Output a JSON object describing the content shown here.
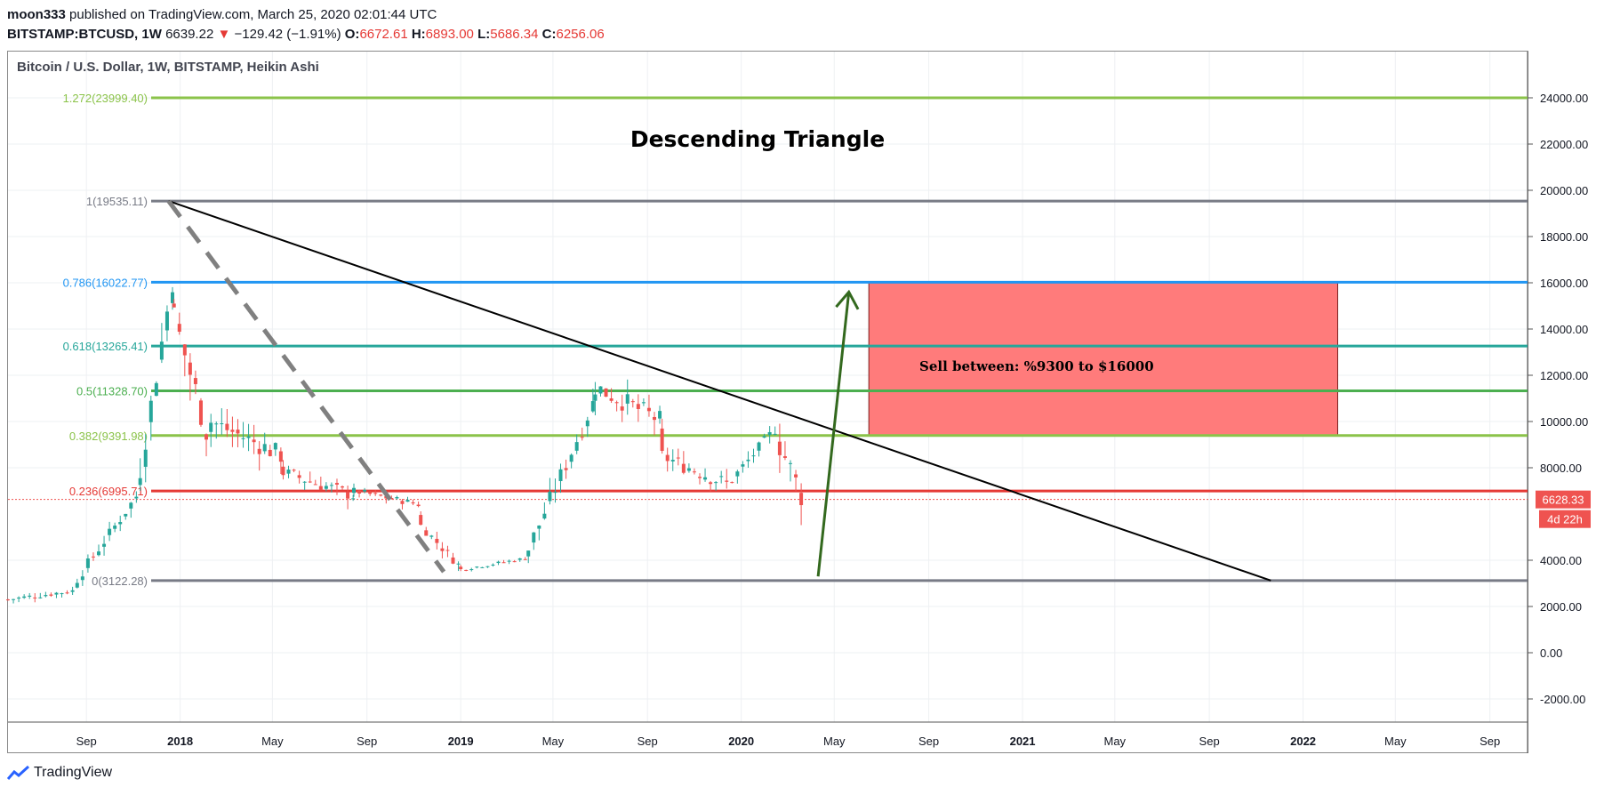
{
  "header": {
    "line1": {
      "user": "moon333",
      "text": "published on TradingView.com, March 25, 2020 02:01:44 UTC"
    },
    "line2": {
      "symbol": "BITSTAMP:BTCUSD, 1W",
      "price": "6639.22",
      "arrow": "▼",
      "change": "−129.42 (−1.91%)",
      "o_label": "O:",
      "o": "6672.61",
      "h_label": "H:",
      "h": "6893.00",
      "l_label": "L:",
      "l": "5686.34",
      "c_label": "C:",
      "c": "6256.06"
    }
  },
  "chart_title": "Bitcoin / U.S. Dollar, 1W, BITSTAMP, Heikin Ashi",
  "footer": {
    "brand": "TradingView",
    "logo_icon": "tradingview-logo-icon"
  },
  "chart_data": {
    "type": "candlestick",
    "title": "Descending Triangle",
    "ylim": [
      -3000,
      26000
    ],
    "y_ticks": [
      "24000.00",
      "22000.00",
      "20000.00",
      "18000.00",
      "16000.00",
      "14000.00",
      "12000.00",
      "10000.00",
      "8000.00",
      "4000.00",
      "2000.00",
      "0.00",
      "-2000.00"
    ],
    "x_ticks": [
      "Sep",
      "2018",
      "May",
      "Sep",
      "2019",
      "May",
      "Sep",
      "2020",
      "May",
      "Sep",
      "2021",
      "May",
      "Sep",
      "2022",
      "May",
      "Sep"
    ],
    "x_tick_dates": [
      "2017-09-01",
      "2018-01-01",
      "2018-05-01",
      "2018-09-01",
      "2019-01-01",
      "2019-05-01",
      "2019-09-01",
      "2020-01-01",
      "2020-05-01",
      "2020-09-01",
      "2021-01-01",
      "2021-05-01",
      "2021-09-01",
      "2022-01-01",
      "2022-05-01",
      "2022-09-01"
    ],
    "x_range": [
      "2017-05-22",
      "2022-10-20"
    ],
    "last_price": {
      "value": 6628.33,
      "label": "6628.33",
      "countdown": "4d 22h",
      "color": "#ef5350"
    },
    "fib_levels": [
      {
        "ratio": "1.272",
        "price": 23999.4,
        "label": "1.272(23999.40)",
        "color": "#8bc34a"
      },
      {
        "ratio": "1",
        "price": 19535.11,
        "label": "1(19535.11)",
        "color": "#787b86"
      },
      {
        "ratio": "0.786",
        "price": 16022.77,
        "label": "0.786(16022.77)",
        "color": "#2196f3"
      },
      {
        "ratio": "0.618",
        "price": 13265.41,
        "label": "0.618(13265.41)",
        "color": "#26a69a"
      },
      {
        "ratio": "0.5",
        "price": 11328.7,
        "label": "0.5(11328.70)",
        "color": "#4caf50"
      },
      {
        "ratio": "0.382",
        "price": 9391.98,
        "label": "0.382(9391.98)",
        "color": "#8bc34a"
      },
      {
        "ratio": "0.236",
        "price": 6995.71,
        "label": "0.236(6995.71)",
        "color": "#e53935"
      },
      {
        "ratio": "0",
        "price": 3122.28,
        "label": "0(3122.28)",
        "color": "#787b86"
      }
    ],
    "annotations": {
      "sell_zone": {
        "text": "Sell between: %9300 to $16000",
        "from_date": "2020-06-15",
        "to_date": "2022-02-15",
        "low": 9391.98,
        "high": 16022.77,
        "color": "#ff7b7b"
      },
      "triangle_line": {
        "from_date": "2017-12-17",
        "from_price": 19535.11,
        "to_date": "2021-11-20",
        "to_price": 3122.28
      },
      "dashed_line": {
        "from_date": "2017-12-17",
        "from_price": 19535.11,
        "to_date": "2018-12-10",
        "to_price": 3500
      },
      "green_arrow": {
        "from_date": "2020-04-10",
        "from_price": 3300,
        "to_date": "2020-05-20",
        "to_price": 15600
      }
    },
    "segments": [
      {
        "start": "2017-05-22",
        "end": "2017-08-20",
        "from": 2300,
        "to": 2700,
        "amp": 250
      },
      {
        "start": "2017-08-20",
        "end": "2017-11-10",
        "from": 3200,
        "to": 7000,
        "amp": 500
      },
      {
        "start": "2017-11-10",
        "end": "2017-12-24",
        "from": 8000,
        "to": 16500,
        "amp": 1200
      },
      {
        "start": "2017-12-24",
        "end": "2018-02-10",
        "from": 14500,
        "to": 9000,
        "amp": 1500
      },
      {
        "start": "2018-02-10",
        "end": "2018-05-15",
        "from": 10000,
        "to": 8500,
        "amp": 900
      },
      {
        "start": "2018-05-15",
        "end": "2018-08-15",
        "from": 7800,
        "to": 6800,
        "amp": 600
      },
      {
        "start": "2018-08-15",
        "end": "2018-11-10",
        "from": 7000,
        "to": 6400,
        "amp": 300
      },
      {
        "start": "2018-11-10",
        "end": "2019-01-01",
        "from": 5500,
        "to": 3700,
        "amp": 400
      },
      {
        "start": "2019-01-01",
        "end": "2019-03-30",
        "from": 3600,
        "to": 4100,
        "amp": 150
      },
      {
        "start": "2019-03-30",
        "end": "2019-06-25",
        "from": 4500,
        "to": 11000,
        "amp": 800
      },
      {
        "start": "2019-06-25",
        "end": "2019-09-20",
        "from": 11500,
        "to": 10000,
        "amp": 900
      },
      {
        "start": "2019-09-20",
        "end": "2019-12-20",
        "from": 8500,
        "to": 7200,
        "amp": 700
      },
      {
        "start": "2019-12-20",
        "end": "2020-02-20",
        "from": 7500,
        "to": 9900,
        "amp": 500
      },
      {
        "start": "2020-02-20",
        "end": "2020-03-26",
        "from": 9000,
        "to": 6300,
        "amp": 1200
      }
    ],
    "candle_interval_days": 7,
    "colors": {
      "up": "#26a69a",
      "down": "#ef5350"
    }
  }
}
